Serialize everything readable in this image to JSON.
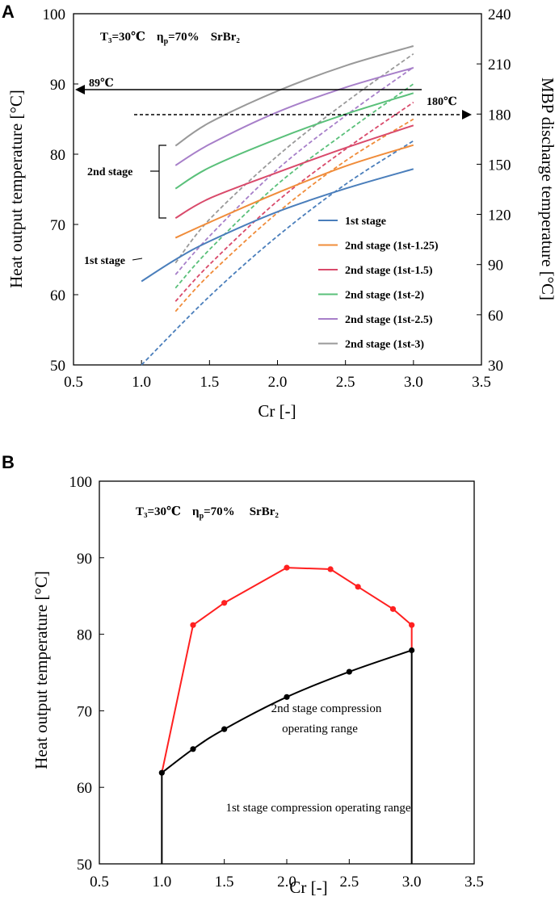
{
  "panels": {
    "a": {
      "letter": "A"
    },
    "b": {
      "letter": "B"
    }
  },
  "chart_data": [
    {
      "id": "A",
      "type": "line",
      "header": {
        "t3": "T₃=30℃",
        "eta": "η",
        "eta_sub": "p",
        "eta_rest": "=70%",
        "material": "SrBr₂"
      },
      "xlabel": "Cr [-]",
      "ylabel": "Heat output temperature [°C]",
      "y2label": "MBP discharge temperature [°C]",
      "xlim": [
        0.5,
        3.5
      ],
      "ylim": [
        50,
        100
      ],
      "y2lim": [
        30,
        240
      ],
      "xticks": [
        "0.5",
        "1.0",
        "1.5",
        "2.0",
        "2.5",
        "3.0",
        "3.5"
      ],
      "yticks": [
        "50",
        "60",
        "70",
        "80",
        "90",
        "100"
      ],
      "y2ticks": [
        "30",
        "60",
        "90",
        "120",
        "150",
        "180",
        "210",
        "240"
      ],
      "annotations": {
        "left_arrow": "89℃",
        "right_arrow": "180℃",
        "bracket": "2nd stage",
        "first": "1st stage"
      },
      "series": [
        {
          "name": "1st stage",
          "color": "#4a7ebb",
          "solid": {
            "x": [
              1.0,
              1.25,
              1.5,
              2.0,
              2.5,
              3.0
            ],
            "y": [
              61.9,
              65.0,
              67.6,
              71.8,
              75.1,
              77.9
            ]
          },
          "dashed": {
            "x": [
              1.0,
              1.5,
              2.0,
              2.5,
              3.0
            ],
            "y2": [
              30,
              71,
              107,
              138,
              164
            ]
          }
        },
        {
          "name": "2nd stage (1st-1.25)",
          "color": "#f08c3a",
          "solid": {
            "x": [
              1.25,
              1.5,
              2.0,
              2.5,
              3.0
            ],
            "y": [
              68.1,
              70.3,
              74.5,
              78.3,
              81.3
            ]
          },
          "dashed": {
            "x": [
              1.25,
              1.5,
              2.0,
              2.5,
              3.0
            ],
            "y2": [
              62,
              84,
              121,
              152,
              177
            ]
          }
        },
        {
          "name": "2nd stage (1st-1.5)",
          "color": "#d94a6b",
          "solid": {
            "x": [
              1.25,
              1.5,
              2.0,
              2.5,
              3.0
            ],
            "y": [
              70.9,
              73.7,
              77.4,
              80.9,
              84.1
            ]
          },
          "dashed": {
            "x": [
              1.25,
              1.5,
              2.0,
              2.5,
              3.0
            ],
            "y2": [
              68,
              90,
              128,
              159,
              187
            ]
          }
        },
        {
          "name": "2nd stage (1st-2)",
          "color": "#5ac07a",
          "solid": {
            "x": [
              1.25,
              1.5,
              2.0,
              2.5,
              3.0
            ],
            "y": [
              75.1,
              78.1,
              82.2,
              85.7,
              88.7
            ]
          },
          "dashed": {
            "x": [
              1.25,
              1.5,
              2.0,
              2.5,
              3.0
            ],
            "y2": [
              76,
              99,
              138,
              169,
              198
            ]
          }
        },
        {
          "name": "2nd stage (1st-2.5)",
          "color": "#a77fc9",
          "solid": {
            "x": [
              1.25,
              1.5,
              2.0,
              2.5,
              3.0
            ],
            "y": [
              78.4,
              81.4,
              86.0,
              89.5,
              92.3
            ]
          },
          "dashed": {
            "x": [
              1.25,
              1.5,
              2.0,
              2.5,
              3.0
            ],
            "y2": [
              84,
              107,
              147,
              179,
              208
            ]
          }
        },
        {
          "name": "2nd stage (1st-3)",
          "color": "#999999",
          "solid": {
            "x": [
              1.25,
              1.5,
              2.0,
              2.5,
              3.0
            ],
            "y": [
              81.2,
              84.5,
              89.0,
              92.6,
              95.4
            ]
          },
          "dashed": {
            "x": [
              1.25,
              1.5,
              2.0,
              2.5,
              3.0
            ],
            "y2": [
              91,
              117,
              155,
              187,
              216
            ]
          }
        }
      ]
    },
    {
      "id": "B",
      "type": "line",
      "header": {
        "t3": "T₃=30℃",
        "eta": "η",
        "eta_sub": "p",
        "eta_rest": "=70%",
        "material": "SrBr₂"
      },
      "xlabel": "Cr [-]",
      "ylabel": "Heat output temperature [°C]",
      "xlim": [
        0.5,
        3.5
      ],
      "ylim": [
        50,
        100
      ],
      "xticks": [
        "0.5",
        "1.0",
        "1.5",
        "2.0",
        "2.5",
        "3.0",
        "3.5"
      ],
      "yticks": [
        "50",
        "60",
        "70",
        "80",
        "90",
        "100"
      ],
      "region_labels": {
        "upper_line1": "2nd stage compression",
        "upper_line2": "operating range",
        "lower": "1st stage compression operating range"
      },
      "series": [
        {
          "name": "1st stage boundary",
          "color": "#000000",
          "x": [
            1.0,
            1.25,
            1.5,
            2.0,
            2.5,
            3.0
          ],
          "y": [
            61.9,
            65.0,
            67.6,
            71.8,
            75.1,
            77.9
          ]
        },
        {
          "name": "2nd stage boundary",
          "color": "#ff2020",
          "x": [
            1.0,
            1.25,
            1.5,
            2.0,
            2.35,
            2.57,
            2.85,
            3.0,
            3.0
          ],
          "y": [
            61.9,
            81.2,
            84.1,
            88.7,
            88.5,
            86.2,
            83.3,
            81.2,
            77.9
          ]
        }
      ]
    }
  ]
}
